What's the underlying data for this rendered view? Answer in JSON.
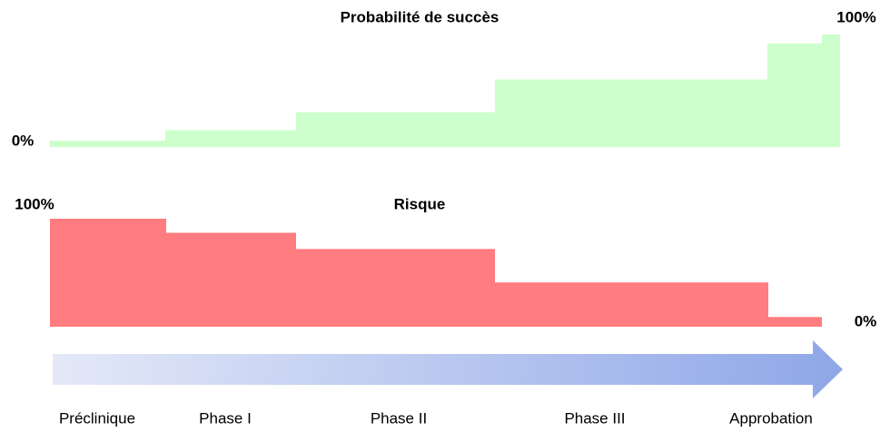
{
  "chart_data": [
    {
      "type": "step-area",
      "title": "Probabilité de succès",
      "color": "#ccffcc",
      "values": [
        5.6,
        15,
        31,
        60,
        92,
        100
      ],
      "ylim": [
        0,
        100
      ],
      "yticks": [
        {
          "value": 0,
          "label": "0%"
        },
        {
          "value": 100,
          "label": "100%"
        }
      ]
    },
    {
      "type": "step-area",
      "title": "Risque",
      "color": "#ff7c80",
      "values": [
        100,
        87,
        72,
        41,
        9
      ],
      "ylim": [
        0,
        100
      ],
      "yticks": [
        {
          "value": 100,
          "label": "100%"
        },
        {
          "value": 0,
          "label": "0%"
        }
      ]
    }
  ],
  "stages": [
    "Préclinique",
    "Phase I",
    "Phase II",
    "Phase III",
    "Approbation"
  ]
}
